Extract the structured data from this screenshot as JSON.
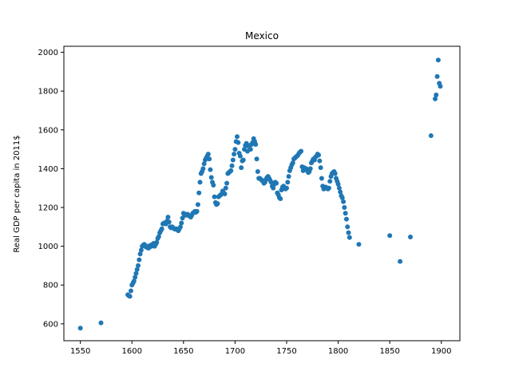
{
  "chart_data": {
    "type": "scatter",
    "title": "Mexico",
    "xlabel": "",
    "ylabel": "Real GDP per capita in 2011$",
    "xlim": [
      1534,
      1918
    ],
    "ylim": [
      513,
      2031
    ],
    "xticks": [
      1550,
      1600,
      1650,
      1700,
      1750,
      1800,
      1850,
      1900
    ],
    "yticks": [
      600,
      800,
      1000,
      1200,
      1400,
      1600,
      1800,
      2000
    ],
    "grid": false,
    "marker_color": "#1f77b4",
    "series": [
      {
        "points": [
          [
            1550,
            578
          ],
          [
            1570,
            605
          ],
          [
            1596,
            750
          ],
          [
            1597,
            745
          ],
          [
            1598,
            742
          ],
          [
            1599,
            770
          ],
          [
            1600,
            800
          ],
          [
            1601,
            810
          ],
          [
            1602,
            820
          ],
          [
            1603,
            840
          ],
          [
            1604,
            860
          ],
          [
            1605,
            880
          ],
          [
            1606,
            900
          ],
          [
            1607,
            930
          ],
          [
            1608,
            960
          ],
          [
            1609,
            980
          ],
          [
            1610,
            1000
          ],
          [
            1611,
            1005
          ],
          [
            1612,
            1010
          ],
          [
            1613,
            1000
          ],
          [
            1614,
            995
          ],
          [
            1615,
            1000
          ],
          [
            1616,
            990
          ],
          [
            1617,
            995
          ],
          [
            1618,
            1005
          ],
          [
            1619,
            1000
          ],
          [
            1620,
            1010
          ],
          [
            1621,
            1015
          ],
          [
            1622,
            1000
          ],
          [
            1623,
            1010
          ],
          [
            1624,
            1020
          ],
          [
            1625,
            1040
          ],
          [
            1626,
            1050
          ],
          [
            1627,
            1070
          ],
          [
            1628,
            1080
          ],
          [
            1629,
            1090
          ],
          [
            1630,
            1115
          ],
          [
            1631,
            1120
          ],
          [
            1632,
            1120
          ],
          [
            1633,
            1115
          ],
          [
            1634,
            1130
          ],
          [
            1635,
            1150
          ],
          [
            1636,
            1125
          ],
          [
            1637,
            1100
          ],
          [
            1638,
            1095
          ],
          [
            1639,
            1100
          ],
          [
            1640,
            1095
          ],
          [
            1641,
            1090
          ],
          [
            1642,
            1088
          ],
          [
            1643,
            1090
          ],
          [
            1644,
            1085
          ],
          [
            1645,
            1080
          ],
          [
            1646,
            1090
          ],
          [
            1647,
            1100
          ],
          [
            1648,
            1120
          ],
          [
            1649,
            1145
          ],
          [
            1650,
            1170
          ],
          [
            1651,
            1160
          ],
          [
            1652,
            1165
          ],
          [
            1653,
            1160
          ],
          [
            1654,
            1165
          ],
          [
            1655,
            1160
          ],
          [
            1656,
            1155
          ],
          [
            1657,
            1150
          ],
          [
            1658,
            1160
          ],
          [
            1659,
            1170
          ],
          [
            1660,
            1175
          ],
          [
            1661,
            1180
          ],
          [
            1662,
            1175
          ],
          [
            1663,
            1180
          ],
          [
            1664,
            1215
          ],
          [
            1665,
            1275
          ],
          [
            1666,
            1330
          ],
          [
            1667,
            1375
          ],
          [
            1668,
            1385
          ],
          [
            1669,
            1400
          ],
          [
            1670,
            1425
          ],
          [
            1671,
            1445
          ],
          [
            1672,
            1455
          ],
          [
            1673,
            1465
          ],
          [
            1674,
            1475
          ],
          [
            1675,
            1450
          ],
          [
            1676,
            1395
          ],
          [
            1677,
            1355
          ],
          [
            1678,
            1330
          ],
          [
            1679,
            1315
          ],
          [
            1680,
            1255
          ],
          [
            1681,
            1225
          ],
          [
            1682,
            1215
          ],
          [
            1683,
            1220
          ],
          [
            1684,
            1255
          ],
          [
            1685,
            1260
          ],
          [
            1686,
            1265
          ],
          [
            1687,
            1270
          ],
          [
            1688,
            1285
          ],
          [
            1689,
            1275
          ],
          [
            1690,
            1270
          ],
          [
            1691,
            1300
          ],
          [
            1692,
            1325
          ],
          [
            1693,
            1375
          ],
          [
            1694,
            1380
          ],
          [
            1695,
            1385
          ],
          [
            1696,
            1390
          ],
          [
            1697,
            1415
          ],
          [
            1698,
            1445
          ],
          [
            1699,
            1475
          ],
          [
            1700,
            1500
          ],
          [
            1701,
            1540
          ],
          [
            1702,
            1565
          ],
          [
            1703,
            1535
          ],
          [
            1704,
            1480
          ],
          [
            1705,
            1465
          ],
          [
            1706,
            1405
          ],
          [
            1707,
            1440
          ],
          [
            1708,
            1445
          ],
          [
            1709,
            1500
          ],
          [
            1710,
            1520
          ],
          [
            1711,
            1530
          ],
          [
            1712,
            1490
          ],
          [
            1713,
            1515
          ],
          [
            1714,
            1520
          ],
          [
            1715,
            1500
          ],
          [
            1716,
            1525
          ],
          [
            1717,
            1535
          ],
          [
            1718,
            1555
          ],
          [
            1719,
            1540
          ],
          [
            1720,
            1525
          ],
          [
            1721,
            1450
          ],
          [
            1722,
            1385
          ],
          [
            1723,
            1350
          ],
          [
            1724,
            1350
          ],
          [
            1725,
            1345
          ],
          [
            1726,
            1340
          ],
          [
            1727,
            1335
          ],
          [
            1728,
            1325
          ],
          [
            1729,
            1330
          ],
          [
            1730,
            1345
          ],
          [
            1731,
            1355
          ],
          [
            1732,
            1360
          ],
          [
            1733,
            1350
          ],
          [
            1734,
            1340
          ],
          [
            1735,
            1330
          ],
          [
            1736,
            1310
          ],
          [
            1737,
            1300
          ],
          [
            1738,
            1320
          ],
          [
            1739,
            1330
          ],
          [
            1740,
            1325
          ],
          [
            1741,
            1275
          ],
          [
            1742,
            1265
          ],
          [
            1743,
            1250
          ],
          [
            1744,
            1245
          ],
          [
            1745,
            1290
          ],
          [
            1746,
            1305
          ],
          [
            1747,
            1310
          ],
          [
            1748,
            1300
          ],
          [
            1749,
            1295
          ],
          [
            1750,
            1300
          ],
          [
            1751,
            1330
          ],
          [
            1752,
            1360
          ],
          [
            1753,
            1390
          ],
          [
            1754,
            1405
          ],
          [
            1755,
            1420
          ],
          [
            1756,
            1430
          ],
          [
            1757,
            1450
          ],
          [
            1758,
            1455
          ],
          [
            1759,
            1460
          ],
          [
            1760,
            1465
          ],
          [
            1761,
            1470
          ],
          [
            1762,
            1480
          ],
          [
            1763,
            1485
          ],
          [
            1764,
            1490
          ],
          [
            1765,
            1410
          ],
          [
            1766,
            1390
          ],
          [
            1767,
            1405
          ],
          [
            1768,
            1395
          ],
          [
            1769,
            1400
          ],
          [
            1770,
            1390
          ],
          [
            1771,
            1380
          ],
          [
            1772,
            1385
          ],
          [
            1773,
            1400
          ],
          [
            1774,
            1430
          ],
          [
            1775,
            1440
          ],
          [
            1776,
            1450
          ],
          [
            1777,
            1445
          ],
          [
            1778,
            1460
          ],
          [
            1779,
            1465
          ],
          [
            1780,
            1475
          ],
          [
            1781,
            1470
          ],
          [
            1782,
            1440
          ],
          [
            1783,
            1405
          ],
          [
            1784,
            1350
          ],
          [
            1785,
            1310
          ],
          [
            1786,
            1295
          ],
          [
            1787,
            1300
          ],
          [
            1788,
            1305
          ],
          [
            1789,
            1300
          ],
          [
            1790,
            1295
          ],
          [
            1791,
            1300
          ],
          [
            1792,
            1335
          ],
          [
            1793,
            1360
          ],
          [
            1794,
            1375
          ],
          [
            1795,
            1380
          ],
          [
            1796,
            1385
          ],
          [
            1797,
            1375
          ],
          [
            1798,
            1350
          ],
          [
            1799,
            1335
          ],
          [
            1800,
            1320
          ],
          [
            1801,
            1300
          ],
          [
            1802,
            1280
          ],
          [
            1803,
            1260
          ],
          [
            1804,
            1250
          ],
          [
            1805,
            1230
          ],
          [
            1806,
            1200
          ],
          [
            1807,
            1170
          ],
          [
            1808,
            1140
          ],
          [
            1809,
            1100
          ],
          [
            1810,
            1070
          ],
          [
            1811,
            1045
          ],
          [
            1820,
            1010
          ],
          [
            1850,
            1055
          ],
          [
            1860,
            922
          ],
          [
            1870,
            1048
          ],
          [
            1890,
            1570
          ],
          [
            1894,
            1760
          ],
          [
            1895,
            1780
          ],
          [
            1896,
            1875
          ],
          [
            1897,
            1960
          ],
          [
            1898,
            1840
          ],
          [
            1899,
            1825
          ]
        ]
      }
    ]
  }
}
